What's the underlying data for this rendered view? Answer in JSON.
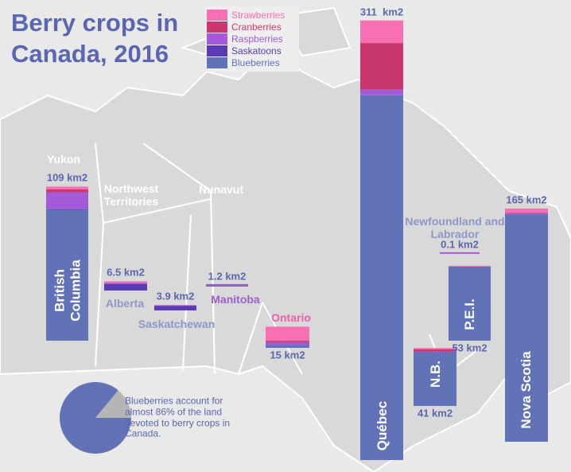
{
  "chart_data": {
    "type": "bar",
    "stacked": true,
    "title": "Berry crops in Canada, 2016",
    "categories": [
      "British Columbia",
      "Alberta",
      "Saskatchewan",
      "Manitoba",
      "Ontario",
      "Québec",
      "N.B.",
      "P.E.I.",
      "Nova Scotia",
      "Newfoundland and Labrador"
    ],
    "series": [
      {
        "name": "Strawberries",
        "color": "#f86fb4",
        "values": [
          2,
          1,
          0.3,
          0.6,
          10,
          16,
          1,
          0.5,
          3,
          0
        ]
      },
      {
        "name": "Cranberries",
        "color": "#c9376f",
        "values": [
          2,
          0,
          0,
          0,
          1,
          33,
          1.5,
          0,
          0.5,
          0
        ]
      },
      {
        "name": "Raspberries",
        "color": "#a35ad8",
        "values": [
          12,
          1,
          0.3,
          0.3,
          2,
          4,
          0.5,
          0,
          0.5,
          0.1
        ]
      },
      {
        "name": "Saskatoons",
        "color": "#5b3bb2",
        "values": [
          0.5,
          4.5,
          3.3,
          0.3,
          0,
          0,
          0,
          0,
          0,
          0
        ]
      },
      {
        "name": "Blueberries",
        "color": "#6272b6",
        "values": [
          92.5,
          0,
          0,
          0,
          2,
          258,
          38,
          52.5,
          161,
          0
        ]
      }
    ],
    "totals": {
      "values": [
        109,
        6.5,
        3.9,
        1.2,
        15,
        311,
        41,
        53,
        165,
        0.1
      ],
      "value_labels": [
        "109 km2",
        "6.5 km2",
        "3.9 km2",
        "1.2 km2",
        "15 km2",
        "311  km2",
        "41 km2",
        "53 km2",
        "165 km2",
        "0.1 km2"
      ]
    },
    "map_labels": [
      "Yukon",
      "Northwest Territories",
      "Nunavut"
    ],
    "pie": {
      "share": 86,
      "colors": [
        "#6272b6",
        "#b5b5b5"
      ],
      "note": "Blueberries account for almost 86% of the land devoted to berry crops in Canada."
    }
  }
}
